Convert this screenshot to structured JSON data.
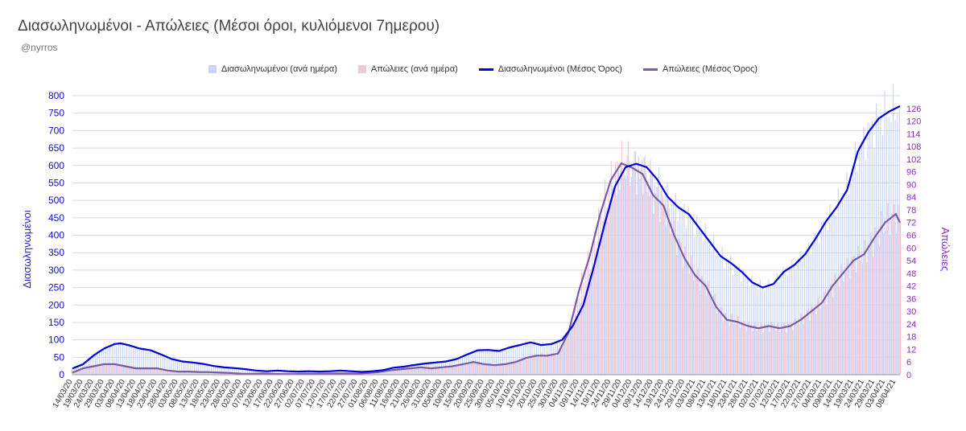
{
  "header": {
    "title": "Διασωληνωμένοι - Απώλειες (Μέσοι όροι, κυλιόμενοι 7ημερου)",
    "subtitle": "@nyrros"
  },
  "legend": [
    {
      "label": "Διασωληνωμένοι (ανά ημέρα)",
      "color": "#c9d6f7",
      "kind": "box"
    },
    {
      "label": "Απώλειες (ανά ημέρα)",
      "color": "#f0c8d6",
      "kind": "box"
    },
    {
      "label": "Διασωληνωμένοι (Μέσος Όρος)",
      "color": "#0000dd",
      "kind": "line"
    },
    {
      "label": "Απώλειες (Μέσος Όρος)",
      "color": "#7b5aa6",
      "kind": "line"
    }
  ],
  "chart_data": {
    "type": "bar",
    "title": "Διασωληνωμένοι - Απώλειες (Μέσοι όροι, κυλιόμενοι 7ημερου)",
    "ylabel": "Διασωληνωμένοι",
    "y2label": "Απώλειες",
    "ylim": [
      0,
      800
    ],
    "y2lim": [
      0,
      132
    ],
    "yticks": [
      0,
      50,
      100,
      150,
      200,
      250,
      300,
      350,
      400,
      450,
      500,
      550,
      600,
      650,
      700,
      750,
      800
    ],
    "y2ticks": [
      0,
      6,
      12,
      18,
      24,
      30,
      36,
      42,
      48,
      54,
      60,
      66,
      72,
      78,
      84,
      90,
      96,
      102,
      108,
      114,
      120,
      126
    ],
    "xticks": [
      "14/03/20",
      "19/03/20",
      "24/03/20",
      "29/03/20",
      "03/04/20",
      "08/04/20",
      "13/04/20",
      "18/04/20",
      "23/04/20",
      "28/04/20",
      "03/05/20",
      "08/05/20",
      "13/05/20",
      "18/05/20",
      "23/05/20",
      "28/05/20",
      "02/06/20",
      "07/06/20",
      "12/06/20",
      "17/06/20",
      "22/06/20",
      "27/06/20",
      "02/07/20",
      "07/07/20",
      "12/07/20",
      "17/07/20",
      "22/07/20",
      "27/07/20",
      "01/08/20",
      "06/08/20",
      "11/08/20",
      "16/08/20",
      "21/08/20",
      "26/08/20",
      "31/08/20",
      "05/09/20",
      "10/09/20",
      "15/09/20",
      "20/09/20",
      "25/09/20",
      "30/09/20",
      "05/10/20",
      "10/10/20",
      "15/10/20",
      "20/10/20",
      "25/10/20",
      "30/10/20",
      "04/11/20",
      "09/11/20",
      "14/11/20",
      "19/11/20",
      "24/11/20",
      "29/11/20",
      "04/12/20",
      "09/12/20",
      "14/12/20",
      "19/12/20",
      "24/12/20",
      "29/12/20",
      "03/01/21",
      "08/01/21",
      "13/01/21",
      "18/01/21",
      "23/01/21",
      "28/01/21",
      "02/02/21",
      "07/02/21",
      "12/02/21",
      "17/02/21",
      "22/02/21",
      "27/02/21",
      "04/03/21",
      "09/03/21",
      "14/03/21",
      "19/03/21",
      "24/03/21",
      "29/03/21",
      "03/04/21",
      "08/04/21"
    ],
    "x_start": "14/03/20",
    "x_end": "10/04/21",
    "series": [
      {
        "name": "Διασωληνωμένοι (Μέσος Όρος)",
        "axis": "left",
        "color": "#0000dd",
        "points": [
          [
            "14/03/20",
            18
          ],
          [
            "19/03/20",
            30
          ],
          [
            "24/03/20",
            55
          ],
          [
            "29/03/20",
            75
          ],
          [
            "03/04/20",
            88
          ],
          [
            "06/04/20",
            90
          ],
          [
            "10/04/20",
            84
          ],
          [
            "15/04/20",
            75
          ],
          [
            "20/04/20",
            70
          ],
          [
            "25/04/20",
            58
          ],
          [
            "30/04/20",
            45
          ],
          [
            "05/05/20",
            38
          ],
          [
            "10/05/20",
            35
          ],
          [
            "15/05/20",
            31
          ],
          [
            "20/05/20",
            25
          ],
          [
            "25/05/20",
            21
          ],
          [
            "30/05/20",
            19
          ],
          [
            "04/06/20",
            16
          ],
          [
            "09/06/20",
            12
          ],
          [
            "14/06/20",
            10
          ],
          [
            "19/06/20",
            12
          ],
          [
            "24/06/20",
            10
          ],
          [
            "29/06/20",
            9
          ],
          [
            "04/07/20",
            10
          ],
          [
            "09/07/20",
            9
          ],
          [
            "14/07/20",
            10
          ],
          [
            "19/07/20",
            12
          ],
          [
            "24/07/20",
            10
          ],
          [
            "29/07/20",
            8
          ],
          [
            "03/08/20",
            10
          ],
          [
            "08/08/20",
            13
          ],
          [
            "13/08/20",
            20
          ],
          [
            "18/08/20",
            23
          ],
          [
            "23/08/20",
            28
          ],
          [
            "28/08/20",
            32
          ],
          [
            "02/09/20",
            35
          ],
          [
            "07/09/20",
            38
          ],
          [
            "12/09/20",
            45
          ],
          [
            "17/09/20",
            58
          ],
          [
            "22/09/20",
            70
          ],
          [
            "27/09/20",
            71
          ],
          [
            "02/10/20",
            68
          ],
          [
            "07/10/20",
            78
          ],
          [
            "12/10/20",
            85
          ],
          [
            "17/10/20",
            93
          ],
          [
            "22/10/20",
            85
          ],
          [
            "27/10/20",
            88
          ],
          [
            "01/11/20",
            100
          ],
          [
            "06/11/20",
            140
          ],
          [
            "11/11/20",
            200
          ],
          [
            "16/11/20",
            310
          ],
          [
            "21/11/20",
            430
          ],
          [
            "26/11/20",
            540
          ],
          [
            "01/12/20",
            595
          ],
          [
            "06/12/20",
            605
          ],
          [
            "11/12/20",
            595
          ],
          [
            "16/12/20",
            560
          ],
          [
            "21/12/20",
            510
          ],
          [
            "26/12/20",
            480
          ],
          [
            "31/12/20",
            460
          ],
          [
            "05/01/21",
            420
          ],
          [
            "10/01/21",
            380
          ],
          [
            "15/01/21",
            340
          ],
          [
            "20/01/21",
            320
          ],
          [
            "25/01/21",
            295
          ],
          [
            "30/01/21",
            265
          ],
          [
            "04/02/21",
            250
          ],
          [
            "09/02/21",
            260
          ],
          [
            "14/02/21",
            295
          ],
          [
            "19/02/21",
            315
          ],
          [
            "24/02/21",
            345
          ],
          [
            "01/03/21",
            390
          ],
          [
            "06/03/21",
            440
          ],
          [
            "11/03/21",
            480
          ],
          [
            "16/03/21",
            530
          ],
          [
            "21/03/21",
            640
          ],
          [
            "26/03/21",
            695
          ],
          [
            "31/03/21",
            735
          ],
          [
            "05/04/21",
            755
          ],
          [
            "10/04/21",
            770
          ]
        ]
      },
      {
        "name": "Απώλειες (Μέσος Όρος)",
        "axis": "right",
        "color": "#7b5aa6",
        "points": [
          [
            "14/03/20",
            1
          ],
          [
            "19/03/20",
            3
          ],
          [
            "24/03/20",
            4
          ],
          [
            "29/03/20",
            5
          ],
          [
            "03/04/20",
            5
          ],
          [
            "08/04/20",
            4
          ],
          [
            "13/04/20",
            3
          ],
          [
            "18/04/20",
            3
          ],
          [
            "23/04/20",
            3
          ],
          [
            "28/04/20",
            2
          ],
          [
            "03/05/20",
            1.5
          ],
          [
            "08/05/20",
            1.5
          ],
          [
            "13/05/20",
            1.3
          ],
          [
            "18/05/20",
            1.2
          ],
          [
            "23/05/20",
            1
          ],
          [
            "28/05/20",
            0.8
          ],
          [
            "02/06/20",
            0.5
          ],
          [
            "07/06/20",
            0.4
          ],
          [
            "12/06/20",
            0.6
          ],
          [
            "17/06/20",
            0.4
          ],
          [
            "22/06/20",
            0.3
          ],
          [
            "27/06/20",
            0.3
          ],
          [
            "02/07/20",
            0.4
          ],
          [
            "07/07/20",
            0.4
          ],
          [
            "12/07/20",
            0.5
          ],
          [
            "17/07/20",
            0.6
          ],
          [
            "22/07/20",
            0.6
          ],
          [
            "27/07/20",
            0.5
          ],
          [
            "01/08/20",
            0.8
          ],
          [
            "06/08/20",
            1.2
          ],
          [
            "11/08/20",
            2
          ],
          [
            "16/08/20",
            2.5
          ],
          [
            "21/08/20",
            3
          ],
          [
            "26/08/20",
            3.5
          ],
          [
            "31/08/20",
            3
          ],
          [
            "05/09/20",
            3.5
          ],
          [
            "10/09/20",
            4
          ],
          [
            "15/09/20",
            5
          ],
          [
            "20/09/20",
            6
          ],
          [
            "25/09/20",
            5
          ],
          [
            "30/09/20",
            4.5
          ],
          [
            "05/10/20",
            5
          ],
          [
            "10/10/20",
            6
          ],
          [
            "15/10/20",
            8
          ],
          [
            "20/10/20",
            9
          ],
          [
            "25/10/20",
            9
          ],
          [
            "30/10/20",
            10
          ],
          [
            "04/11/20",
            20
          ],
          [
            "09/11/20",
            40
          ],
          [
            "14/11/20",
            56
          ],
          [
            "19/11/20",
            76
          ],
          [
            "24/11/20",
            92
          ],
          [
            "29/11/20",
            100
          ],
          [
            "04/12/20",
            98
          ],
          [
            "09/12/20",
            95
          ],
          [
            "14/12/20",
            85
          ],
          [
            "19/12/20",
            80
          ],
          [
            "24/12/20",
            66
          ],
          [
            "29/12/20",
            55
          ],
          [
            "03/01/21",
            47
          ],
          [
            "08/01/21",
            42
          ],
          [
            "13/01/21",
            32
          ],
          [
            "18/01/21",
            26
          ],
          [
            "23/01/21",
            25
          ],
          [
            "28/01/21",
            23
          ],
          [
            "02/02/21",
            22
          ],
          [
            "07/02/21",
            23
          ],
          [
            "12/02/21",
            22
          ],
          [
            "17/02/21",
            23
          ],
          [
            "22/02/21",
            26
          ],
          [
            "27/02/21",
            30
          ],
          [
            "04/03/21",
            34
          ],
          [
            "09/03/21",
            42
          ],
          [
            "14/03/21",
            48
          ],
          [
            "19/03/21",
            54
          ],
          [
            "24/03/21",
            57
          ],
          [
            "29/03/21",
            65
          ],
          [
            "03/04/21",
            72
          ],
          [
            "08/04/21",
            76
          ],
          [
            "10/04/21",
            72
          ]
        ]
      }
    ]
  }
}
